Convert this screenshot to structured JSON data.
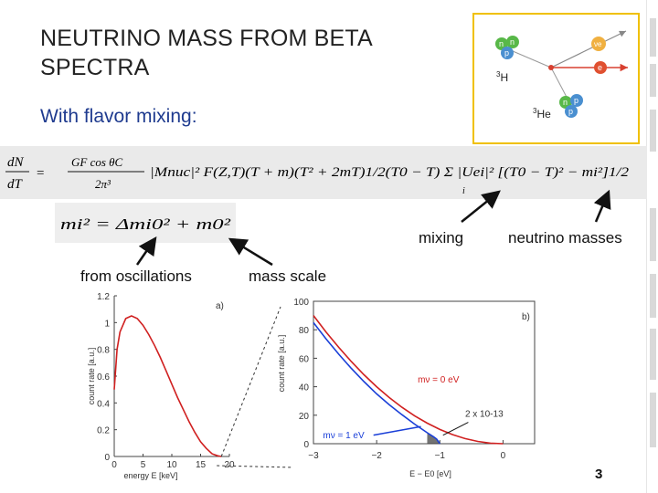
{
  "slide": {
    "title": "NEUTRINO MASS FROM BETA SPECTRA",
    "subtitle": "With flavor mixing:",
    "page_number": "3"
  },
  "diagram": {
    "labels": {
      "h3": "H",
      "h3_sup": "3",
      "he3": "He",
      "he3_sup": "3",
      "n": "n",
      "p": "p",
      "nu": "νe",
      "e": "e"
    },
    "colors": {
      "border": "#f0c000",
      "neutron": "#58b848",
      "proton": "#4a8fd0",
      "nu": "#f0b040",
      "electron": "#e05030",
      "nu_arrow": "#888888",
      "e_arrow": "#d84030"
    }
  },
  "equations": {
    "main": {
      "lhs_num": "dN",
      "lhs_den": "dT",
      "factor_num": "GF cos θC",
      "factor_den": "2π³",
      "body": "|Mnuc|² F(Z,T)(T + m)(T² + 2mT)1/2(T0 − T) Σ |Uei|² [(T0 − T)² − mi²]1/2",
      "sum_index": "i"
    },
    "mass": {
      "text": "mi² = Δmi0² + m0²"
    }
  },
  "annotations": {
    "mixing": "mixing",
    "neutrino_masses": "neutrino masses",
    "from_oscillations": "from oscillations",
    "mass_scale": "mass scale"
  },
  "chart_data": [
    {
      "type": "line",
      "title": "a)",
      "xlabel": "energy E [keV]",
      "ylabel": "count rate [a.u.]",
      "xlim": [
        0,
        20
      ],
      "ylim": [
        0,
        1.2
      ],
      "xticks": [
        "0",
        "5",
        "10",
        "15",
        "20"
      ],
      "yticks": [
        "0",
        "0.2",
        "0.4",
        "0.6",
        "0.8",
        "1",
        "1.2"
      ],
      "series": [
        {
          "color": "#d02020",
          "x": [
            0,
            0.5,
            1,
            2,
            3,
            4,
            5,
            6,
            7,
            8,
            9,
            10,
            11,
            12,
            13,
            14,
            15,
            16,
            17,
            18,
            18.6
          ],
          "y": [
            0.5,
            0.8,
            0.93,
            1.03,
            1.05,
            1.03,
            0.98,
            0.91,
            0.83,
            0.74,
            0.64,
            0.54,
            0.44,
            0.35,
            0.26,
            0.18,
            0.11,
            0.06,
            0.02,
            0.005,
            0
          ]
        }
      ]
    },
    {
      "type": "line",
      "title": "b)",
      "xlabel": "E − E0 [eV]",
      "ylabel": "count rate [a.u.]",
      "xlim": [
        -3,
        0.5
      ],
      "ylim": [
        0,
        100
      ],
      "xticks": [
        "−3",
        "−2",
        "−1",
        "0"
      ],
      "yticks": [
        "0",
        "20",
        "40",
        "60",
        "80",
        "100"
      ],
      "annotations": [
        "mν = 0 eV",
        "mν = 1 eV",
        "2 x 10-13"
      ],
      "series": [
        {
          "name": "mν = 0 eV",
          "color": "#d02020",
          "x": [
            -3,
            -2.8,
            -2.6,
            -2.4,
            -2.2,
            -2,
            -1.8,
            -1.6,
            -1.4,
            -1.2,
            -1,
            -0.8,
            -0.6,
            -0.4,
            -0.2,
            0
          ],
          "y": [
            90,
            78.4,
            67.6,
            57.6,
            48.4,
            40,
            32.4,
            25.6,
            19.6,
            14.4,
            10,
            6.4,
            3.6,
            1.6,
            0.4,
            0
          ]
        },
        {
          "name": "mν = 1 eV",
          "color": "#1a3fd8",
          "x": [
            -3,
            -2.8,
            -2.6,
            -2.4,
            -2.2,
            -2,
            -1.8,
            -1.6,
            -1.4,
            -1.2,
            -1.1,
            -1.05,
            -1
          ],
          "y": [
            85,
            73.6,
            62.8,
            52.8,
            43.6,
            35,
            27.3,
            20.4,
            13.8,
            7.7,
            4.9,
            3.3,
            0
          ]
        }
      ]
    }
  ]
}
